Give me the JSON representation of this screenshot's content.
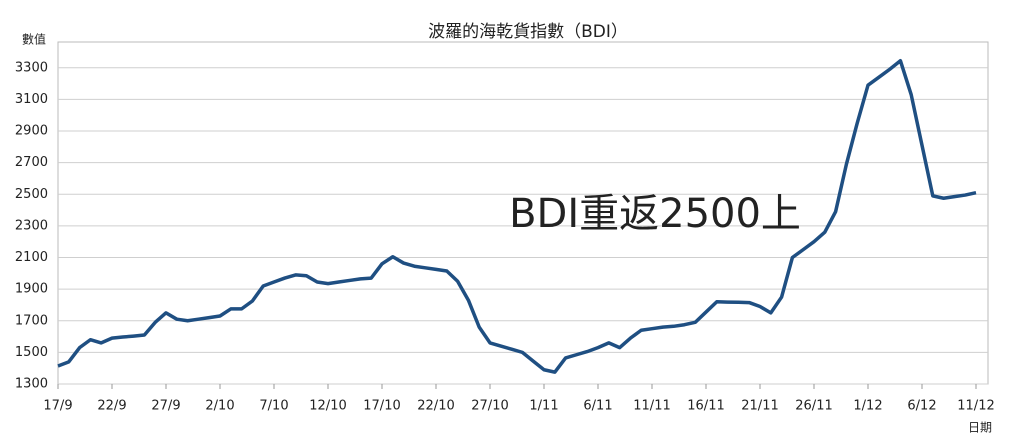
{
  "chart_data": {
    "type": "line",
    "title": "波羅的海乾貨指數（BDI）",
    "y_label": "數值",
    "x_label": "日期",
    "annotation": "BDI重返2500上",
    "categories": [
      "17/9",
      null,
      null,
      null,
      null,
      "22/9",
      null,
      null,
      null,
      null,
      "27/9",
      null,
      null,
      null,
      null,
      "2/10",
      null,
      null,
      null,
      null,
      "7/10",
      null,
      null,
      null,
      null,
      "12/10",
      null,
      null,
      null,
      null,
      "17/10",
      null,
      null,
      null,
      null,
      "22/10",
      null,
      null,
      null,
      null,
      "27/10",
      null,
      null,
      null,
      null,
      "1/11",
      null,
      null,
      null,
      null,
      "6/11",
      null,
      null,
      null,
      null,
      "11/11",
      null,
      null,
      null,
      null,
      "16/11",
      null,
      null,
      null,
      null,
      "21/11",
      null,
      null,
      null,
      null,
      "26/11",
      null,
      null,
      null,
      null,
      "1/12",
      null,
      null,
      null,
      null,
      "6/12",
      null,
      null,
      null,
      null,
      "11/12"
    ],
    "series": [
      {
        "name": "BDI",
        "color": "#1f4f82",
        "values": [
          1414,
          1440,
          1530,
          1580,
          1560,
          1590,
          1597,
          1603,
          1610,
          1690,
          1750,
          1710,
          1700,
          1710,
          1720,
          1730,
          1775,
          1775,
          1825,
          1920,
          1945,
          1970,
          1990,
          1985,
          1945,
          1935,
          1945,
          1955,
          1965,
          1970,
          2060,
          2105,
          2065,
          2045,
          2035,
          2025,
          2015,
          1950,
          1830,
          1660,
          1560,
          1540,
          1520,
          1500,
          1445,
          1390,
          1375,
          1465,
          1485,
          1505,
          1530,
          1560,
          1530,
          1590,
          1640,
          1650,
          1660,
          1665,
          1675,
          1690,
          1755,
          1820,
          1818,
          1817,
          1815,
          1790,
          1750,
          1850,
          2100,
          2150,
          2200,
          2260,
          2390,
          2690,
          2950,
          3190,
          3240,
          3290,
          3345,
          3130,
          2810,
          2490,
          2475,
          2485,
          2495,
          2510
        ]
      }
    ],
    "ylim": [
      1300,
      3400
    ],
    "yticks": [
      1300,
      1500,
      1700,
      1900,
      2100,
      2300,
      2500,
      2700,
      2900,
      3100,
      3300
    ],
    "grid": true
  }
}
